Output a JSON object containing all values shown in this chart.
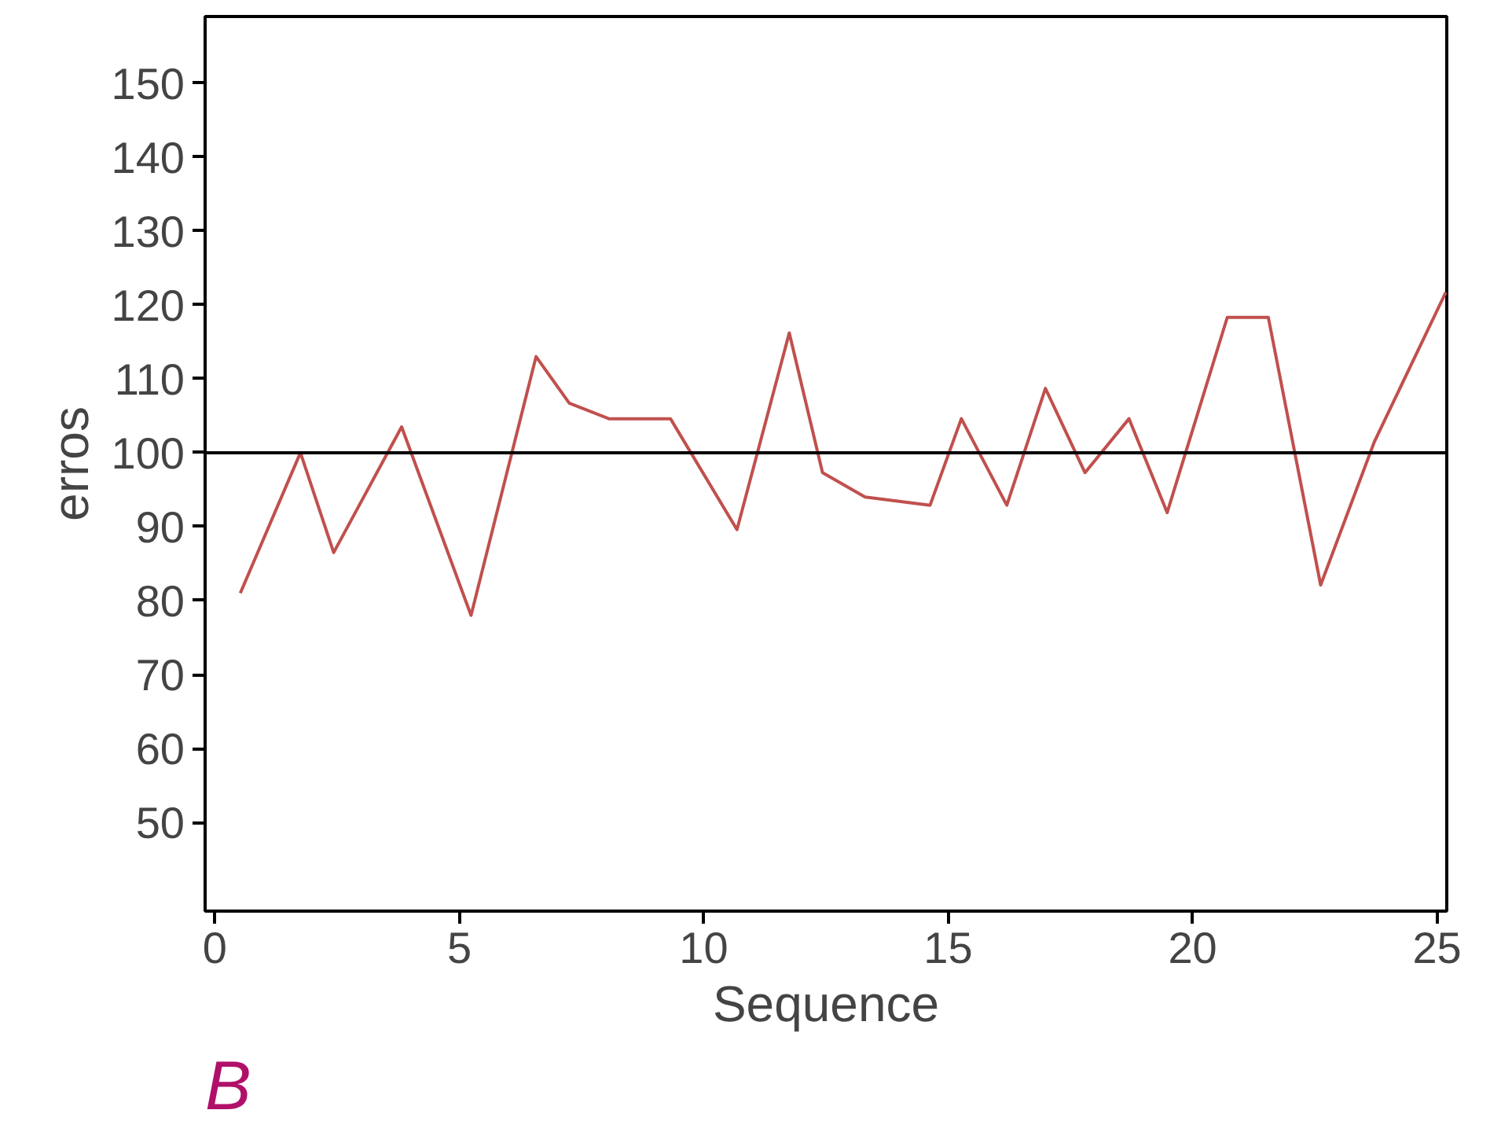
{
  "chart_data": {
    "type": "line",
    "xlabel": "Sequence",
    "ylabel": "erros",
    "x": [
      0.52,
      1.75,
      2.43,
      3.82,
      5.24,
      6.57,
      7.25,
      8.06,
      9.32,
      10.68,
      11.75,
      12.43,
      13.3,
      14.63,
      15.27,
      16.2,
      16.99,
      17.8,
      18.7,
      19.48,
      20.71,
      21.55,
      22.62,
      23.72,
      25.18
    ],
    "series": [
      {
        "color": "#c0504d",
        "values": [
          81,
          100,
          86.5,
          103.5,
          78,
          113,
          106.7,
          104.6,
          104.6,
          89.6,
          116.2,
          97.3,
          94,
          92.9,
          104.6,
          92.9,
          108.7,
          97.3,
          104.6,
          91.9,
          118.3,
          118.3,
          82.1,
          101.5,
          121.7
        ]
      }
    ],
    "xlim": [
      -0.2,
      25.2
    ],
    "ylim": [
      38,
      159
    ],
    "xticks": [
      0,
      5,
      10,
      15,
      20,
      25
    ],
    "yticks": [
      50,
      60,
      70,
      80,
      90,
      100,
      110,
      120,
      130,
      140,
      150
    ],
    "ref_lines": [
      {
        "axis": "y",
        "value": 100,
        "color": "#000000"
      }
    ],
    "annotations": [
      "B"
    ],
    "grid": false,
    "marker": "none",
    "line_style": "solid"
  }
}
